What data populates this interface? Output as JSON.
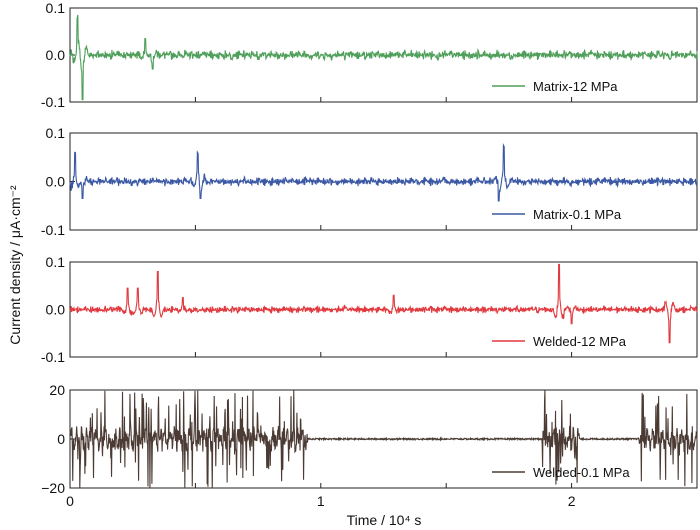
{
  "chart_data": [
    {
      "type": "line",
      "series": [
        {
          "name": "Matrix-12 MPa",
          "color": "#4f9f5a"
        }
      ],
      "x_range": [
        0,
        2.5
      ],
      "ylim": [
        -0.1,
        0.1
      ],
      "y_ticks": [
        "0.1",
        "0.0",
        "-0.1"
      ],
      "legend_position": "bottom-right",
      "signal": {
        "noise": 0.007,
        "spikes": [
          [
            0.03,
            0.075
          ],
          [
            0.05,
            -0.095
          ],
          [
            0.3,
            0.035
          ],
          [
            0.33,
            -0.03
          ]
        ]
      }
    },
    {
      "type": "line",
      "series": [
        {
          "name": "Matrix-0.1 MPa",
          "color": "#3b58a4"
        }
      ],
      "x_range": [
        0,
        2.5
      ],
      "ylim": [
        -0.1,
        0.1
      ],
      "y_ticks": [
        "0.1",
        "0.0",
        "-0.1"
      ],
      "legend_position": "bottom-right",
      "signal": {
        "noise": 0.006,
        "spikes": [
          [
            0.02,
            0.06
          ],
          [
            0.05,
            -0.035
          ],
          [
            0.51,
            0.055
          ],
          [
            0.52,
            -0.035
          ],
          [
            1.73,
            0.07
          ],
          [
            1.71,
            -0.04
          ]
        ]
      }
    },
    {
      "type": "line",
      "series": [
        {
          "name": "Welded-12 MPa",
          "color": "#e0393e"
        }
      ],
      "x_range": [
        0,
        2.5
      ],
      "ylim": [
        -0.1,
        0.1
      ],
      "y_ticks": [
        "0.1",
        "0.0",
        "-0.1"
      ],
      "legend_position": "bottom-right",
      "signal": {
        "noise": 0.005,
        "spikes": [
          [
            0.23,
            0.045
          ],
          [
            0.27,
            0.045
          ],
          [
            0.35,
            0.08
          ],
          [
            0.45,
            0.025
          ],
          [
            1.29,
            0.03
          ],
          [
            1.95,
            0.095
          ],
          [
            2.0,
            -0.03
          ],
          [
            2.39,
            -0.07
          ]
        ]
      }
    },
    {
      "type": "line",
      "series": [
        {
          "name": "Welded-0.1 MPa",
          "color": "#4b3b34"
        }
      ],
      "x_range": [
        0,
        2.5
      ],
      "ylim": [
        -20,
        20
      ],
      "y_ticks": [
        "20",
        "0",
        "−20"
      ],
      "legend_position": "bottom-right",
      "signal": {
        "noise": 0.3,
        "bursts": [
          [
            0,
            0.95
          ],
          [
            1.88,
            2.03
          ],
          [
            2.27,
            2.5
          ]
        ]
      }
    }
  ],
  "x_ticks": [
    "0",
    "1",
    "2"
  ],
  "xlabel": "Time / 10⁴ s",
  "ylabel": "Current density / μA·cm⁻²"
}
